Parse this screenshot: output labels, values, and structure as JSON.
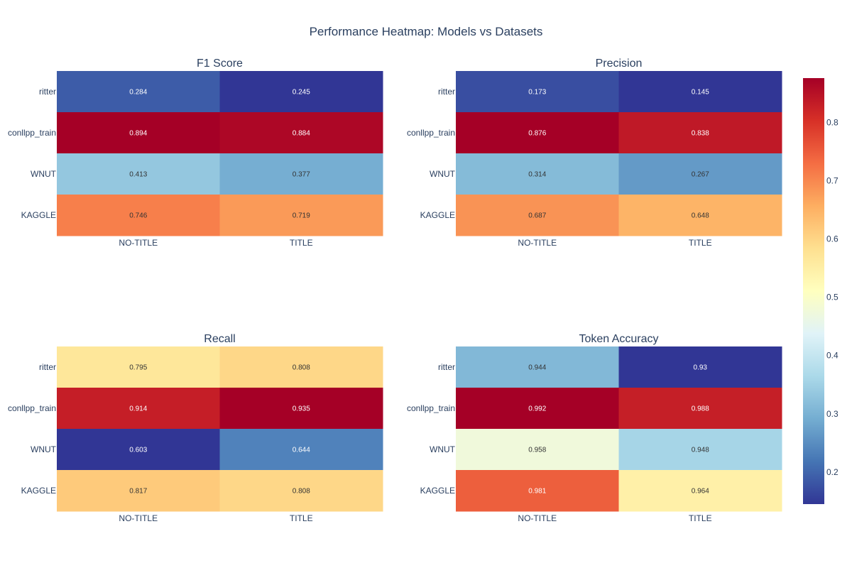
{
  "title": "Performance Heatmap: Models vs Datasets",
  "chart_data": [
    {
      "type": "heatmap",
      "title": "F1 Score",
      "x": [
        "NO-TITLE",
        "TITLE"
      ],
      "y": [
        "ritter",
        "conllpp_train",
        "WNUT",
        "KAGGLE"
      ],
      "z": [
        [
          0.284,
          0.245
        ],
        [
          0.894,
          0.884
        ],
        [
          0.413,
          0.377
        ],
        [
          0.746,
          0.719
        ]
      ],
      "zlim": [
        0.245,
        0.894
      ]
    },
    {
      "type": "heatmap",
      "title": "Precision",
      "x": [
        "NO-TITLE",
        "TITLE"
      ],
      "y": [
        "ritter",
        "conllpp_train",
        "WNUT",
        "KAGGLE"
      ],
      "z": [
        [
          0.173,
          0.145
        ],
        [
          0.876,
          0.838
        ],
        [
          0.314,
          0.267
        ],
        [
          0.687,
          0.648
        ]
      ],
      "zlim": [
        0.145,
        0.876
      ]
    },
    {
      "type": "heatmap",
      "title": "Recall",
      "x": [
        "NO-TITLE",
        "TITLE"
      ],
      "y": [
        "ritter",
        "conllpp_train",
        "WNUT",
        "KAGGLE"
      ],
      "z": [
        [
          0.795,
          0.808
        ],
        [
          0.914,
          0.935
        ],
        [
          0.603,
          0.644
        ],
        [
          0.817,
          0.808
        ]
      ],
      "zlim": [
        0.603,
        0.935
      ]
    },
    {
      "type": "heatmap",
      "title": "Token Accuracy",
      "x": [
        "NO-TITLE",
        "TITLE"
      ],
      "y": [
        "ritter",
        "conllpp_train",
        "WNUT",
        "KAGGLE"
      ],
      "z": [
        [
          0.944,
          0.93
        ],
        [
          0.992,
          0.988
        ],
        [
          0.958,
          0.948
        ],
        [
          0.981,
          0.964
        ]
      ],
      "zlim": [
        0.93,
        0.992
      ]
    }
  ],
  "colorbar": {
    "range": [
      0.145,
      0.876
    ],
    "ticks": [
      "0.2",
      "0.3",
      "0.4",
      "0.5",
      "0.6",
      "0.7",
      "0.8"
    ],
    "tick_values": [
      0.2,
      0.3,
      0.4,
      0.5,
      0.6,
      0.7,
      0.8
    ],
    "colorscale": [
      "#313695",
      "#4575b4",
      "#74add1",
      "#abd9e9",
      "#e0f3f8",
      "#ffffbf",
      "#fee090",
      "#fdae61",
      "#f46d43",
      "#d73027",
      "#a50026"
    ]
  }
}
